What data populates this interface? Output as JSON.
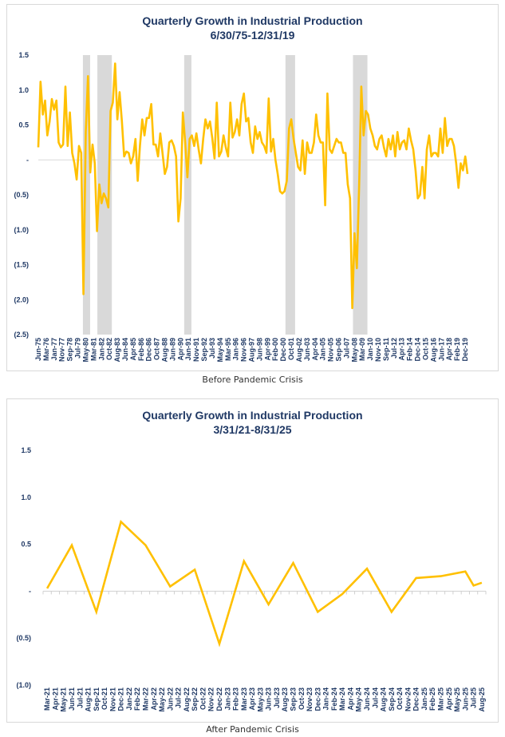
{
  "captions": [
    "Before Pandemic Crisis",
    "After Pandemic Crisis"
  ],
  "chart_data": [
    {
      "type": "line",
      "title": "Quarterly Growth in Industrial Production",
      "subtitle": "6/30/75-12/31/19",
      "xlabel": "",
      "ylabel": "",
      "ylim": [
        -2.5,
        1.5
      ],
      "y_ticks": [
        1.5,
        1.0,
        0.5,
        0,
        -0.5,
        -1.0,
        -1.5,
        -2.0,
        -2.5
      ],
      "y_tick_labels": [
        "1.5",
        "1.0",
        "0.5",
        "-",
        "(0.5)",
        "(1.0)",
        "(1.5)",
        "(2.0)",
        "(2.5)"
      ],
      "grid": false,
      "legend": "none",
      "line_color": "#FFC000",
      "shade_color": "#D9D9D9",
      "x_tick_labels": [
        "Jun-75",
        "Mar-76",
        "Jan-77",
        "Nov-77",
        "Sep-78",
        "Jul-79",
        "May-80",
        "Mar-81",
        "Jan-82",
        "Oct-82",
        "Aug-83",
        "Jun-84",
        "Apr-85",
        "Feb-86",
        "Dec-86",
        "Oct-87",
        "Aug-88",
        "Jun-89",
        "Apr-90",
        "Jan-91",
        "Nov-91",
        "Sep-92",
        "Jul-93",
        "May-94",
        "Mar-95",
        "Jan-96",
        "Nov-96",
        "Aug-97",
        "Jun-98",
        "Apr-99",
        "Feb-00",
        "Dec-00",
        "Oct-01",
        "Aug-02",
        "Jun-03",
        "Apr-04",
        "Jan-05",
        "Nov-05",
        "Sep-06",
        "Jul-07",
        "May-08",
        "Mar-09",
        "Jan-10",
        "Nov-10",
        "Sep-11",
        "Jul-12",
        "Apr-13",
        "Feb-14",
        "Dec-14",
        "Oct-15",
        "Aug-16",
        "Jun-17",
        "Apr-18",
        "Feb-19",
        "Dec-19"
      ],
      "x_start": "1975-Q2",
      "x_end": "2019-Q4",
      "recessions": [
        {
          "start": "1980-Q1",
          "end": "1980-Q3"
        },
        {
          "start": "1981-Q3",
          "end": "1982-Q4"
        },
        {
          "start": "1990-Q3",
          "end": "1991-Q1"
        },
        {
          "start": "2001-Q1",
          "end": "2001-Q4"
        },
        {
          "start": "2008-Q1",
          "end": "2009-Q2"
        }
      ],
      "values": [
        0.18,
        1.12,
        0.65,
        0.85,
        0.35,
        0.55,
        0.87,
        0.72,
        0.85,
        0.25,
        0.18,
        0.22,
        1.05,
        0.2,
        0.68,
        0.1,
        -0.05,
        -0.28,
        0.2,
        0.1,
        -1.92,
        0.4,
        1.2,
        -0.18,
        0.22,
        -0.05,
        -1.02,
        -0.35,
        -0.62,
        -0.48,
        -0.55,
        -0.68,
        0.7,
        0.82,
        1.38,
        0.58,
        0.97,
        0.55,
        0.05,
        0.12,
        0.1,
        -0.05,
        0.05,
        0.3,
        -0.3,
        0.2,
        0.58,
        0.35,
        0.6,
        0.6,
        0.8,
        0.22,
        0.22,
        0.05,
        0.38,
        0.1,
        -0.2,
        -0.1,
        0.25,
        0.28,
        0.2,
        0.05,
        -0.88,
        -0.55,
        0.68,
        0.25,
        -0.25,
        0.3,
        0.35,
        0.2,
        0.38,
        0.15,
        -0.05,
        0.3,
        0.58,
        0.45,
        0.55,
        0.32,
        0.02,
        0.82,
        0.05,
        0.12,
        0.35,
        0.18,
        0.05,
        0.82,
        0.32,
        0.4,
        0.58,
        0.35,
        0.8,
        0.95,
        0.55,
        0.6,
        0.25,
        0.1,
        0.48,
        0.3,
        0.4,
        0.25,
        0.2,
        0.1,
        0.88,
        0.12,
        0.3,
        0.0,
        -0.2,
        -0.45,
        -0.48,
        -0.45,
        -0.3,
        0.45,
        0.58,
        0.3,
        0.1,
        -0.1,
        -0.15,
        0.28,
        -0.2,
        0.25,
        0.1,
        0.1,
        0.25,
        0.65,
        0.35,
        0.25,
        0.25,
        -0.65,
        0.95,
        0.15,
        0.1,
        0.2,
        0.3,
        0.25,
        0.25,
        0.1,
        0.1,
        -0.35,
        -0.55,
        -2.12,
        -1.05,
        -1.55,
        -0.4,
        1.05,
        0.35,
        0.7,
        0.65,
        0.45,
        0.35,
        0.2,
        0.15,
        0.3,
        0.35,
        0.18,
        0.05,
        0.3,
        0.15,
        0.35,
        0.05,
        0.4,
        0.15,
        0.25,
        0.28,
        0.15,
        0.45,
        0.28,
        0.15,
        -0.15,
        -0.55,
        -0.5,
        -0.1,
        -0.55,
        0.15,
        0.35,
        0.05,
        0.1,
        0.1,
        0.05,
        0.45,
        0.1,
        0.6,
        0.2,
        0.3,
        0.3,
        0.2,
        -0.05,
        -0.4,
        -0.05,
        -0.15,
        0.05,
        -0.2
      ]
    },
    {
      "type": "line",
      "title": "Quarterly Growth in Industrial Production",
      "subtitle": "3/31/21-8/31/25",
      "xlabel": "",
      "ylabel": "",
      "ylim": [
        -1.0,
        1.5
      ],
      "y_ticks": [
        1.5,
        1.0,
        0.5,
        0,
        -0.5,
        -1.0
      ],
      "y_tick_labels": [
        "1.5",
        "1.0",
        "0.5",
        "-",
        "(0.5)",
        "(1.0)"
      ],
      "grid": false,
      "legend": "none",
      "line_color": "#FFC000",
      "x_tick_labels": [
        "Mar-21",
        "Apr-21",
        "May-21",
        "Jun-21",
        "Jul-21",
        "Aug-21",
        "Sep-21",
        "Oct-21",
        "Nov-21",
        "Dec-21",
        "Jan-22",
        "Feb-22",
        "Mar-22",
        "Apr-22",
        "May-22",
        "Jun-22",
        "Jul-22",
        "Aug-22",
        "Sep-22",
        "Oct-22",
        "Nov-22",
        "Dec-22",
        "Jan-23",
        "Feb-23",
        "Mar-23",
        "Apr-23",
        "May-23",
        "Jun-23",
        "Jul-23",
        "Aug-23",
        "Sep-23",
        "Oct-23",
        "Nov-23",
        "Dec-23",
        "Jan-24",
        "Feb-24",
        "Mar-24",
        "Apr-24",
        "May-24",
        "Jun-24",
        "Jul-24",
        "Aug-24",
        "Sep-24",
        "Oct-24",
        "Nov-24",
        "Dec-24",
        "Jan-25",
        "Feb-25",
        "Mar-25",
        "Apr-25",
        "May-25",
        "Jun-25",
        "Jul-25",
        "Aug-25"
      ],
      "points": [
        {
          "x": "Mar-21",
          "y": 0.03
        },
        {
          "x": "Jun-21",
          "y": 0.49
        },
        {
          "x": "Sep-21",
          "y": -0.22
        },
        {
          "x": "Dec-21",
          "y": 0.74
        },
        {
          "x": "Mar-22",
          "y": 0.49
        },
        {
          "x": "Jun-22",
          "y": 0.05
        },
        {
          "x": "Sep-22",
          "y": 0.23
        },
        {
          "x": "Dec-22",
          "y": -0.56
        },
        {
          "x": "Mar-23",
          "y": 0.32
        },
        {
          "x": "Jun-23",
          "y": -0.14
        },
        {
          "x": "Sep-23",
          "y": 0.3
        },
        {
          "x": "Dec-23",
          "y": -0.22
        },
        {
          "x": "Mar-24",
          "y": -0.03
        },
        {
          "x": "Jun-24",
          "y": 0.24
        },
        {
          "x": "Sep-24",
          "y": -0.22
        },
        {
          "x": "Dec-24",
          "y": 0.14
        },
        {
          "x": "Mar-25",
          "y": 0.16
        },
        {
          "x": "Jun-25",
          "y": 0.21
        },
        {
          "x": "Jul-25",
          "y": 0.06
        },
        {
          "x": "Aug-25",
          "y": 0.09
        }
      ]
    }
  ]
}
